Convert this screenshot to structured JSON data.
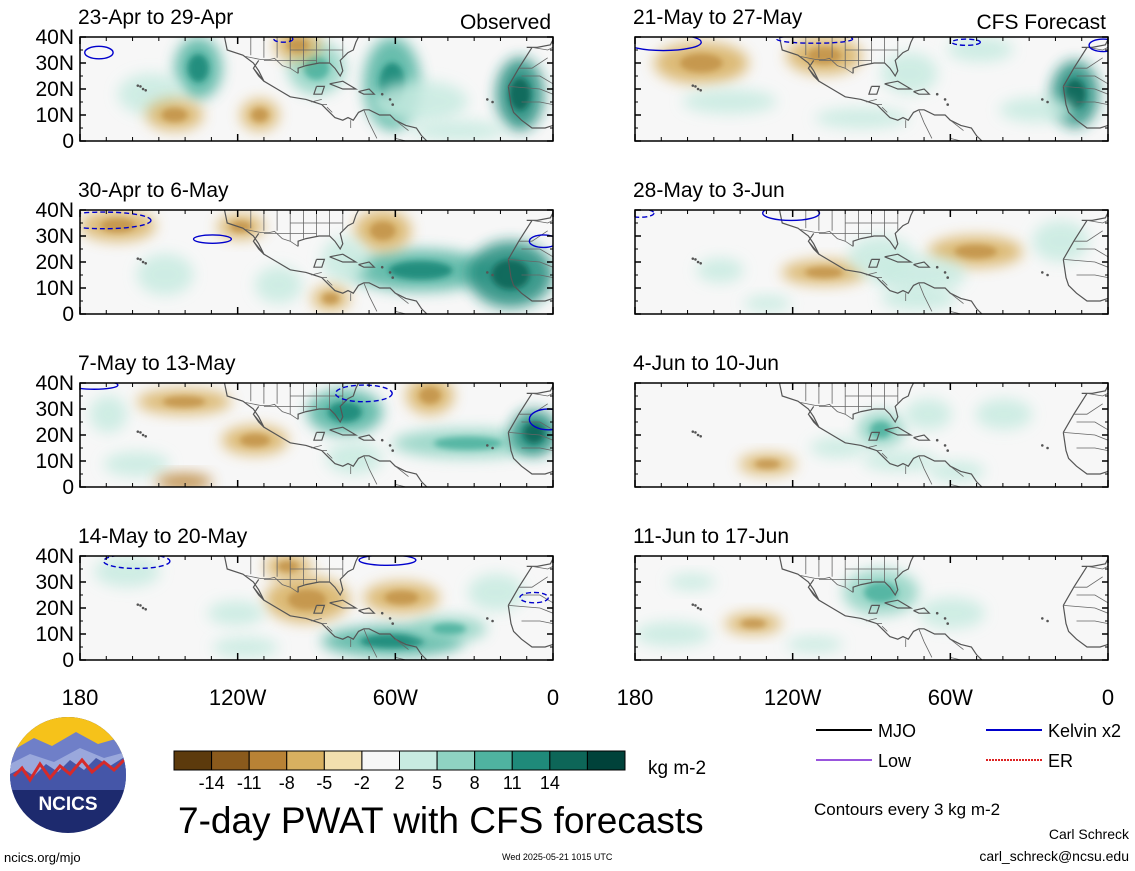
{
  "chart_data": {
    "type": "heatmap",
    "title": "7-day PWAT with CFS forecasts",
    "units": "kg m-2",
    "variable": "PWAT",
    "contour_note": "Contours every 3 kg m-2",
    "panels": [
      {
        "label": "23-Apr to 29-Apr",
        "tag": "Observed",
        "column": 0,
        "row": 0
      },
      {
        "label": "30-Apr to 6-May",
        "tag": "",
        "column": 0,
        "row": 1
      },
      {
        "label": "7-May to 13-May",
        "tag": "",
        "column": 0,
        "row": 2
      },
      {
        "label": "14-May to 20-May",
        "tag": "",
        "column": 0,
        "row": 3
      },
      {
        "label": "21-May to 27-May",
        "tag": "CFS Forecast",
        "column": 1,
        "row": 0
      },
      {
        "label": "28-May to 3-Jun",
        "tag": "",
        "column": 1,
        "row": 1
      },
      {
        "label": "4-Jun to 10-Jun",
        "tag": "",
        "column": 1,
        "row": 2
      },
      {
        "label": "11-Jun to 17-Jun",
        "tag": "",
        "column": 1,
        "row": 3
      }
    ],
    "x_axis": {
      "range_deg_east": [
        -180,
        0
      ],
      "tick_values": [
        -180,
        -120,
        -60,
        0
      ],
      "tick_labels": [
        "180",
        "120W",
        "60W",
        "0"
      ]
    },
    "y_axis": {
      "range_deg_north": [
        0,
        40
      ],
      "tick_values": [
        40,
        30,
        20,
        10,
        0
      ],
      "tick_labels": [
        "40N",
        "30N",
        "20N",
        "10N",
        "0"
      ]
    },
    "colorbar": {
      "labels": [
        "-14",
        "-11",
        "-8",
        "-5",
        "-2",
        "2",
        "5",
        "8",
        "11",
        "14"
      ],
      "colors": [
        "#5c3a0c",
        "#8a5a1c",
        "#b88235",
        "#d8b060",
        "#f2dfae",
        "#f7f7f7",
        "#c8ebe1",
        "#8fd3c2",
        "#4fb3a0",
        "#1f8a7a",
        "#0d6658",
        "#00423a"
      ]
    },
    "legend": [
      {
        "label": "MJO",
        "color": "#000000",
        "style": "solid"
      },
      {
        "label": "Kelvin x2",
        "color": "#0000cc",
        "style": "solid"
      },
      {
        "label": "Low",
        "color": "#9955dd",
        "style": "solid"
      },
      {
        "label": "ER",
        "color": "#dd2222",
        "style": "dotted"
      }
    ]
  },
  "footer": {
    "logo_text": "NCICS",
    "author": "Carl Schreck",
    "email": "carl_schreck@ncsu.edu",
    "url": "ncics.org/mjo",
    "timestamp": "Wed 2025-05-21 1015 UTC"
  }
}
